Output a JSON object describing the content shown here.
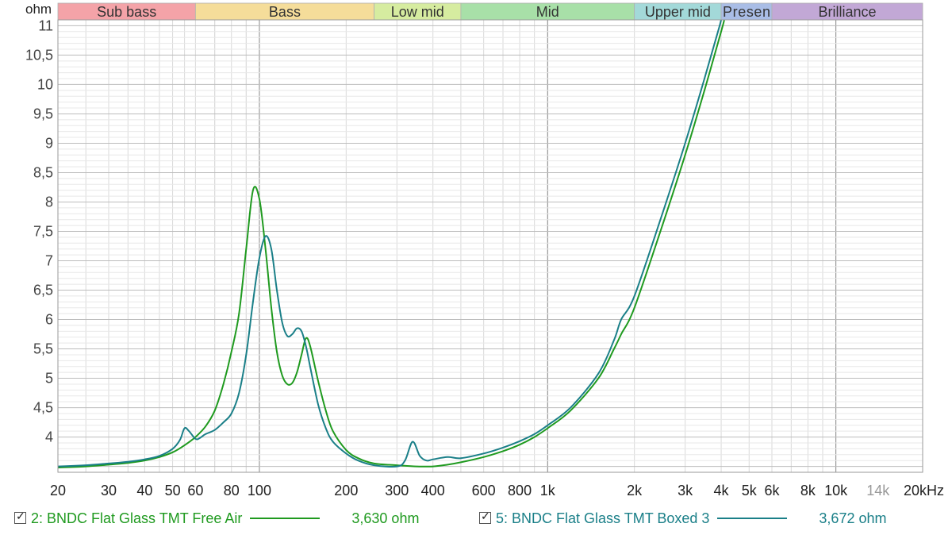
{
  "chart_data": {
    "type": "line",
    "ylabel": "ohm",
    "xscale": "log",
    "xlim": [
      20,
      20000
    ],
    "ylim": [
      3.4,
      11.1
    ],
    "grid": true,
    "x_ticks": [
      {
        "value": 20,
        "label": "20"
      },
      {
        "value": 30,
        "label": "30"
      },
      {
        "value": 40,
        "label": "40"
      },
      {
        "value": 50,
        "label": "50"
      },
      {
        "value": 60,
        "label": "60"
      },
      {
        "value": 80,
        "label": "80"
      },
      {
        "value": 100,
        "label": "100"
      },
      {
        "value": 200,
        "label": "200"
      },
      {
        "value": 300,
        "label": "300"
      },
      {
        "value": 400,
        "label": "400"
      },
      {
        "value": 600,
        "label": "600"
      },
      {
        "value": 800,
        "label": "800"
      },
      {
        "value": 1000,
        "label": "1k"
      },
      {
        "value": 2000,
        "label": "2k"
      },
      {
        "value": 3000,
        "label": "3k"
      },
      {
        "value": 4000,
        "label": "4k"
      },
      {
        "value": 5000,
        "label": "5k"
      },
      {
        "value": 6000,
        "label": "6k"
      },
      {
        "value": 8000,
        "label": "8k"
      },
      {
        "value": 10000,
        "label": "10k"
      },
      {
        "value": 14000,
        "label": "14k"
      },
      {
        "value": 20000,
        "label": "20kHz"
      }
    ],
    "y_ticks": [
      {
        "value": 4,
        "label": "4"
      },
      {
        "value": 4.5,
        "label": "4,5"
      },
      {
        "value": 5,
        "label": "5"
      },
      {
        "value": 5.5,
        "label": "5,5"
      },
      {
        "value": 6,
        "label": "6"
      },
      {
        "value": 6.5,
        "label": "6,5"
      },
      {
        "value": 7,
        "label": "7"
      },
      {
        "value": 7.5,
        "label": "7,5"
      },
      {
        "value": 8,
        "label": "8"
      },
      {
        "value": 8.5,
        "label": "8,5"
      },
      {
        "value": 9,
        "label": "9"
      },
      {
        "value": 9.5,
        "label": "9,5"
      },
      {
        "value": 10,
        "label": "10"
      },
      {
        "value": 10.5,
        "label": "10,5"
      },
      {
        "value": 11,
        "label": "11"
      }
    ],
    "bands": [
      {
        "label": "Sub bass",
        "from": 20,
        "to": 60,
        "color": "#f4a3a8"
      },
      {
        "label": "Bass",
        "from": 60,
        "to": 250,
        "color": "#f5dd9a"
      },
      {
        "label": "Low mid",
        "from": 250,
        "to": 500,
        "color": "#d6eca0"
      },
      {
        "label": "Mid",
        "from": 500,
        "to": 2000,
        "color": "#a8e0a8"
      },
      {
        "label": "Upper mid",
        "from": 2000,
        "to": 4000,
        "color": "#a3d9d9"
      },
      {
        "label": "Presen",
        "from": 4000,
        "to": 6000,
        "color": "#a9bde6"
      },
      {
        "label": "Brilliance",
        "from": 6000,
        "to": 20000,
        "color": "#c2a8d6"
      }
    ],
    "series": [
      {
        "name": "2: BNDC Flat Glass TMT Free Air",
        "color": "#1f9a1f",
        "x": [
          20,
          25,
          30,
          35,
          40,
          45,
          50,
          55,
          60,
          65,
          70,
          75,
          80,
          85,
          90,
          95,
          100,
          105,
          110,
          115,
          120,
          125,
          130,
          135,
          140,
          145,
          150,
          160,
          170,
          180,
          200,
          220,
          250,
          300,
          350,
          400,
          450,
          500,
          600,
          700,
          800,
          900,
          1000,
          1200,
          1500,
          1700,
          1800,
          2000,
          2500,
          3000,
          3500,
          4000,
          4100
        ],
        "y": [
          3.48,
          3.5,
          3.53,
          3.56,
          3.6,
          3.66,
          3.74,
          3.86,
          4.0,
          4.18,
          4.45,
          4.9,
          5.45,
          6.1,
          7.2,
          8.2,
          8.05,
          7.2,
          6.2,
          5.45,
          5.05,
          4.9,
          4.92,
          5.1,
          5.4,
          5.68,
          5.55,
          4.95,
          4.45,
          4.1,
          3.78,
          3.64,
          3.55,
          3.52,
          3.5,
          3.5,
          3.53,
          3.57,
          3.66,
          3.76,
          3.87,
          4.0,
          4.15,
          4.45,
          5.0,
          5.5,
          5.75,
          6.2,
          7.6,
          8.8,
          9.9,
          10.9,
          11.1
        ]
      },
      {
        "name": "5: BNDC Flat Glass TMT Boxed 3",
        "color": "#1a7f88",
        "x": [
          20,
          25,
          30,
          35,
          40,
          45,
          50,
          53,
          55,
          57,
          60,
          62,
          65,
          70,
          75,
          80,
          85,
          90,
          95,
          100,
          105,
          110,
          115,
          120,
          125,
          130,
          135,
          140,
          145,
          150,
          160,
          170,
          180,
          200,
          220,
          250,
          300,
          320,
          340,
          360,
          380,
          400,
          450,
          500,
          600,
          700,
          800,
          900,
          1000,
          1200,
          1500,
          1700,
          1800,
          2000,
          2500,
          3000,
          3500,
          3900,
          4000
        ],
        "y": [
          3.5,
          3.52,
          3.55,
          3.58,
          3.62,
          3.68,
          3.8,
          3.95,
          4.15,
          4.1,
          3.97,
          3.98,
          4.05,
          4.12,
          4.25,
          4.4,
          4.75,
          5.4,
          6.3,
          7.05,
          7.42,
          7.2,
          6.5,
          5.95,
          5.72,
          5.75,
          5.85,
          5.8,
          5.55,
          5.2,
          4.55,
          4.15,
          3.92,
          3.72,
          3.6,
          3.52,
          3.5,
          3.6,
          3.92,
          3.68,
          3.6,
          3.62,
          3.66,
          3.64,
          3.72,
          3.82,
          3.93,
          4.05,
          4.2,
          4.5,
          5.08,
          5.65,
          6.0,
          6.4,
          7.8,
          9.0,
          10.1,
          10.9,
          11.1
        ]
      }
    ]
  },
  "legend": [
    {
      "label": "2: BNDC Flat Glass TMT Free Air",
      "value": "3,630 ohm",
      "color": "#1f9a1f",
      "checked": true
    },
    {
      "label": "5: BNDC Flat Glass TMT Boxed 3",
      "value": "3,672 ohm",
      "color": "#1a7f88",
      "checked": true
    }
  ]
}
